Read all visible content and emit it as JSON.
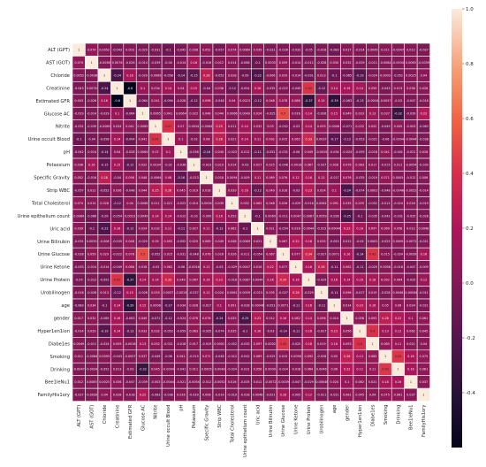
{
  "chart_data": {
    "type": "heatmap",
    "variables": [
      "ALT (GPT)",
      "AST (GOT)",
      "Chloride",
      "Creatinine",
      "Estimated GFR",
      "Glucose AC",
      "Nitrite",
      "Urine occult Blood",
      "pH",
      "Potassium",
      "Specific Gravity",
      "Strip WBC",
      "Total Cholesterol",
      "Urine epithelium count",
      "Uric acid",
      "Urine Bilirubin",
      "Urine Glucose",
      "Urine Ketone",
      "Urine Protein",
      "Urobilinogen",
      "age",
      "gender",
      "Hyper1en1ion",
      "Diabe1es",
      "Smoking",
      "Drinking",
      "Bee1leNu1",
      "FamilyHis1ory"
    ],
    "rows": {
      "ALT (GPT)": [
        1,
        0.074,
        0.0052,
        -0.043,
        0.003,
        -0.029,
        -0.031,
        -0.1,
        -0.042,
        0.036,
        0.052,
        -0.057,
        0.074,
        0.0084,
        0.039,
        -0.031,
        -0.028,
        -0.033,
        -0.05,
        -0.018,
        -0.083,
        0.017,
        -0.014,
        0.0049,
        0.011,
        -0.0047,
        0.012,
        -0.027
      ],
      "AST (GOT)": [
        0.074,
        1,
        -0.0036,
        0.0076,
        -0.026,
        -0.014,
        -0.039,
        -0.04,
        -0.014,
        0.16,
        -0.016,
        0.012,
        0.014,
        -0.066,
        -0.1,
        0.0035,
        0.059,
        -0.014,
        -0.012,
        -0.028,
        0.034,
        0.032,
        -0.029,
        -0.011,
        -0.0084,
        -0.0034,
        0.0065,
        -0.0039
      ],
      "Chloride": [
        0.0052,
        -0.0036,
        1,
        -0.24,
        0.16,
        -0.029,
        -0.0069,
        -0.058,
        -0.14,
        -0.15,
        0.28,
        -0.052,
        0.028,
        -0.09,
        -0.22,
        -0.006,
        0.029,
        -0.014,
        -0.091,
        0.013,
        -0.1,
        -0.065,
        -0.19,
        -0.024,
        0.0093,
        -0.052,
        0.0025,
        0.04
      ],
      "Creatinine": [
        -0.043,
        0.0076,
        -0.24,
        1,
        -0.6,
        0.1,
        0.034,
        0.14,
        0.04,
        0.15,
        -0.04,
        0.036,
        -0.12,
        -0.054,
        0.16,
        -0.035,
        -0.022,
        -0.049,
        0.42,
        -0.12,
        0.14,
        0.16,
        0.14,
        0.059,
        -0.043,
        0.013,
        0.036,
        0.028
      ],
      "Estimated GFR": [
        0.003,
        -0.026,
        0.16,
        -0.6,
        1,
        -0.064,
        0.041,
        -0.094,
        -0.028,
        -0.12,
        0.098,
        -0.048,
        0.04,
        0.0023,
        -0.12,
        0.048,
        0.078,
        0.086,
        -0.37,
        0.15,
        -0.39,
        -0.063,
        -0.13,
        -0.0016,
        -0.0057,
        -0.03,
        -0.047,
        -0.018
      ],
      "Glucose AC": [
        -0.029,
        -0.014,
        -0.029,
        0.1,
        -0.064,
        1,
        0.0065,
        0.041,
        0.0064,
        0.022,
        0.048,
        0.044,
        0.0066,
        0.0049,
        0.024,
        -0.025,
        0.5,
        0.016,
        0.14,
        -0.026,
        0.15,
        0.049,
        0.033,
        0.13,
        0.037,
        -0.32,
        -0.039,
        0.22
      ],
      "Nitrite": [
        -0.031,
        -0.039,
        -0.0069,
        0.034,
        0.041,
        0.0065,
        1,
        0.41,
        0.07,
        0.0034,
        -0.0064,
        0.25,
        0.011,
        0.14,
        0.032,
        0.05,
        -0.052,
        -0.03,
        0.14,
        0.055,
        0.0006,
        -0.071,
        0.032,
        0.052,
        -0.049,
        0.045,
        -0.003,
        -0.063
      ],
      "Urine occult Blood": [
        -0.1,
        -0.04,
        -0.058,
        0.14,
        -0.094,
        0.041,
        0.41,
        1,
        0.1,
        -0.02,
        0.08,
        0.28,
        0.021,
        0.14,
        0.11,
        0.092,
        0.015,
        0.062,
        0.33,
        0.0037,
        -0.17,
        -0.12,
        -0.053,
        -0.021,
        -0.06,
        -0.0094,
        -0.0044,
        -0.038
      ],
      "pH": [
        -0.042,
        -0.014,
        -0.14,
        0.04,
        -0.028,
        0.0064,
        0.07,
        0.1,
        1,
        -0.036,
        -0.16,
        0.045,
        -0.023,
        -0.012,
        -0.11,
        -0.052,
        -0.031,
        -0.06,
        0.049,
        -0.0015,
        -0.034,
        -0.024,
        -0.059,
        -0.018,
        0.041,
        -0.041,
        -0.021,
        0.016
      ],
      "Potassium": [
        0.036,
        0.16,
        -0.15,
        0.15,
        -0.12,
        0.022,
        0.0034,
        -0.02,
        -0.036,
        1,
        -0.023,
        0.019,
        0.014,
        -0.03,
        0.027,
        0.025,
        -0.048,
        -0.0016,
        0.067,
        -0.037,
        0.028,
        0.076,
        0.063,
        0.017,
        -0.015,
        0.011,
        -0.0054,
        -0.039
      ],
      "Specific Gravity": [
        0.052,
        -0.016,
        0.28,
        -0.04,
        0.098,
        0.048,
        -0.0064,
        0.08,
        -0.16,
        -0.023,
        1,
        0.018,
        0.0094,
        -0.009,
        0.11,
        0.069,
        0.076,
        0.12,
        0.16,
        0.12,
        -0.017,
        0.076,
        -0.035,
        -0.019,
        0.071,
        0.0005,
        -0.012,
        0.006
      ],
      "Strip WBC": [
        -0.057,
        0.012,
        -0.052,
        0.036,
        -0.048,
        0.044,
        0.25,
        0.28,
        0.045,
        0.019,
        0.018,
        1,
        0.039,
        0.16,
        -0.12,
        0.049,
        0.016,
        -0.03,
        0.23,
        0.024,
        0.1,
        -0.24,
        -0.074,
        0.0002,
        -0.048,
        -0.0048,
        -0.0052,
        -0.014
      ],
      "Total Cholesterol": [
        0.074,
        0.014,
        0.028,
        -0.12,
        0.04,
        0.0066,
        0.011,
        0.021,
        -0.023,
        0.014,
        0.0094,
        0.039,
        1,
        0.052,
        0.062,
        0.048,
        0.026,
        -0.029,
        -0.016,
        0.0061,
        0.091,
        0.035,
        0.035,
        -0.052,
        -0.012,
        -0.024,
        0.016,
        -0.019
      ],
      "Urine epithelium count": [
        0.0084,
        -0.066,
        -0.09,
        -0.054,
        0.0023,
        0.0049,
        0.14,
        0.14,
        -0.012,
        -0.03,
        -0.009,
        0.16,
        0.052,
        1,
        -0.1,
        0.0069,
        -0.011,
        0.0047,
        0.0087,
        0.0059,
        -0.028,
        -0.25,
        -0.1,
        -0.035,
        -0.042,
        -0.031,
        -0.035,
        -0.028
      ],
      "Uric acid": [
        0.039,
        -0.1,
        -0.22,
        0.16,
        -0.12,
        0.024,
        0.032,
        0.11,
        -0.11,
        0.027,
        0.11,
        -0.12,
        0.062,
        -0.1,
        1,
        0.021,
        -0.054,
        0.016,
        0.0044,
        -0.015,
        -0.00046,
        0.23,
        0.16,
        0.097,
        0.069,
        0.058,
        0.012,
        0.0048
      ],
      "Urine Bilirubin": [
        -0.031,
        0.0035,
        -0.006,
        -0.035,
        0.048,
        -0.025,
        0.05,
        0.092,
        -0.052,
        0.025,
        0.069,
        0.049,
        0.048,
        0.0069,
        0.021,
        1,
        0.067,
        0.22,
        0.16,
        0.035,
        -0.053,
        0.012,
        -0.03,
        0.0002,
        -0.025,
        0.0009,
        -0.0072,
        -0.021
      ],
      "Urine Glucose": [
        -0.028,
        0.059,
        0.029,
        -0.022,
        0.078,
        0.5,
        -0.052,
        0.015,
        -0.031,
        -0.048,
        0.076,
        0.016,
        0.026,
        -0.011,
        -0.054,
        0.067,
        1,
        0.077,
        0.34,
        -0.027,
        0.0071,
        0.16,
        -0.14,
        0.42,
        0.015,
        -0.024,
        -0.0039,
        0.16
      ],
      "Urine Ketone": [
        -0.033,
        -0.014,
        -0.014,
        -0.049,
        0.086,
        0.016,
        -0.03,
        0.062,
        -0.06,
        -0.0016,
        0.12,
        -0.03,
        -0.029,
        0.0047,
        0.016,
        0.22,
        0.077,
        1,
        0.16,
        0.28,
        -0.11,
        0.082,
        -0.11,
        -0.025,
        0.0058,
        -0.018,
        -0.047,
        -0.005
      ],
      "Urine Protein": [
        -0.05,
        -0.012,
        -0.091,
        0.42,
        -0.37,
        0.14,
        0.14,
        0.33,
        0.049,
        0.067,
        0.16,
        0.23,
        -0.016,
        0.0087,
        0.0044,
        0.16,
        0.34,
        0.16,
        1,
        -0.029,
        0.16,
        0.14,
        0.16,
        0.18,
        0.092,
        0.064,
        -0.029,
        0.12
      ],
      "Urobilinogen": [
        -0.018,
        -0.028,
        0.013,
        -0.12,
        0.15,
        -0.026,
        0.055,
        0.0037,
        -0.0015,
        -0.037,
        0.12,
        0.024,
        0.0061,
        0.0059,
        -0.015,
        0.035,
        -0.027,
        0.28,
        -0.029,
        1,
        -0.11,
        0.096,
        -0.017,
        0.019,
        -0.028,
        0.0046,
        -0.00046,
        -0.011
      ],
      "age": [
        -0.083,
        0.034,
        -0.1,
        0.14,
        -0.39,
        0.15,
        0.0006,
        -0.17,
        -0.034,
        0.028,
        -0.017,
        0.1,
        0.091,
        -0.028,
        -0.00046,
        -0.053,
        0.0071,
        -0.11,
        0.16,
        -0.11,
        1,
        0.014,
        0.23,
        0.16,
        0.05,
        0.06,
        0.024,
        -0.021
      ],
      "gender": [
        0.017,
        0.032,
        -0.065,
        0.16,
        -0.063,
        0.049,
        -0.071,
        -0.12,
        -0.024,
        0.076,
        0.076,
        -0.24,
        0.035,
        -0.25,
        0.23,
        0.012,
        0.16,
        0.082,
        0.14,
        0.096,
        0.014,
        1,
        0.056,
        0.093,
        0.28,
        0.22,
        0.1,
        0.061
      ],
      "Hyper1en1ion": [
        -0.014,
        0.029,
        -0.19,
        0.14,
        -0.13,
        0.033,
        0.032,
        -0.053,
        -0.059,
        0.063,
        -0.035,
        -0.074,
        0.035,
        -0.1,
        0.16,
        -0.03,
        -0.14,
        -0.11,
        0.16,
        -0.017,
        0.23,
        0.056,
        1,
        0.4,
        0.13,
        0.12,
        0.062,
        0.045
      ],
      "Diabe1es": [
        0.0049,
        -0.011,
        -0.024,
        0.059,
        -0.0016,
        0.13,
        0.052,
        -0.021,
        -0.018,
        0.017,
        -0.019,
        0.0002,
        -0.052,
        -0.035,
        0.097,
        0.0002,
        0.42,
        -0.025,
        0.18,
        0.019,
        0.16,
        0.093,
        0.4,
        1,
        0.085,
        0.11,
        0.021,
        0.04
      ],
      "Smoking": [
        0.011,
        -0.0084,
        0.0093,
        -0.043,
        -0.0057,
        0.037,
        -0.049,
        -0.06,
        0.041,
        -0.015,
        0.071,
        -0.048,
        -0.012,
        -0.042,
        0.069,
        -0.025,
        0.015,
        0.0058,
        0.092,
        -0.028,
        0.05,
        0.28,
        0.13,
        0.085,
        1,
        0.43,
        0.18,
        0.075
      ],
      "Drinking": [
        -0.0047,
        -0.0034,
        -0.052,
        0.013,
        -0.03,
        -0.32,
        0.045,
        -0.0094,
        -0.041,
        0.011,
        0.0005,
        -0.0048,
        -0.024,
        -0.031,
        0.058,
        0.0009,
        -0.024,
        -0.018,
        0.064,
        0.0046,
        0.06,
        0.22,
        0.12,
        0.11,
        0.43,
        1,
        0.16,
        0.061
      ],
      "Bee1leNu1": [
        0.012,
        0.0065,
        0.0025,
        0.036,
        -0.047,
        -0.039,
        -0.003,
        -0.0044,
        -0.021,
        -0.0054,
        -0.012,
        -0.0052,
        0.016,
        -0.035,
        0.012,
        -0.0072,
        -0.0039,
        -0.047,
        -0.029,
        -0.00046,
        0.024,
        0.1,
        0.062,
        0.021,
        0.18,
        0.16,
        1,
        0.037
      ],
      "FamilyHis1ory": [
        -0.027,
        -0.0039,
        0.04,
        0.028,
        -0.018,
        0.22,
        -0.063,
        -0.038,
        0.016,
        -0.039,
        0.006,
        -0.014,
        -0.019,
        -0.028,
        0.0048,
        -0.021,
        0.16,
        -0.005,
        0.12,
        -0.011,
        -0.021,
        0.061,
        0.045,
        0.04,
        0.075,
        0.061,
        0.037,
        1
      ]
    },
    "colorbar": {
      "min": -0.6,
      "max": 1,
      "ticks": [
        "1.0",
        "0.8",
        "0.6",
        "0.4",
        "0.2",
        "0.0",
        "-0.2",
        "-0.4"
      ]
    },
    "grid": true,
    "legend": "right"
  }
}
